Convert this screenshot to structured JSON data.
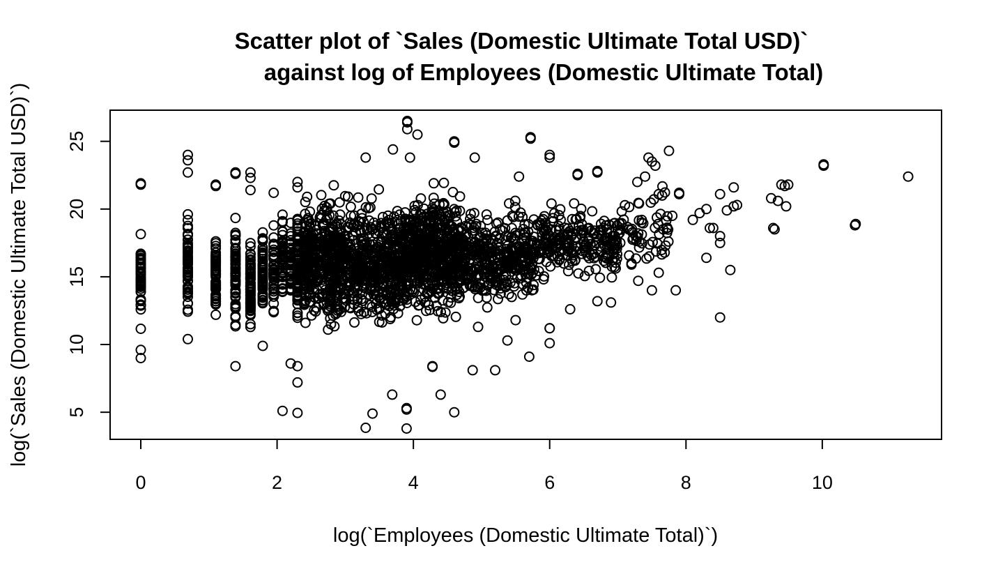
{
  "chart_data": {
    "type": "scatter",
    "title_lines": [
      "Scatter plot of `Sales (Domestic Ultimate Total USD)`",
      "against log of Employees (Domestic Ultimate Total)"
    ],
    "xlabel": "log(`Employees (Domestic Ultimate Total)`)",
    "ylabel": "log(`Sales (Domestic Ultimate Total USD)`)",
    "xlim": [
      -0.45,
      11.75
    ],
    "ylim": [
      3.0,
      27.3
    ],
    "x_ticks": [
      0,
      2,
      4,
      6,
      8,
      10
    ],
    "x_tick_labels": [
      "0",
      "2",
      "4",
      "6",
      "8",
      "10"
    ],
    "y_ticks": [
      5,
      10,
      15,
      20,
      25
    ],
    "y_tick_labels": [
      "5",
      "10",
      "15",
      "20",
      "25"
    ],
    "grid": false,
    "legend": "none",
    "marker": "open-circle",
    "marker_color": "#000000",
    "point_groups": [
      {
        "x": 0.0,
        "y_min": 10.0,
        "y_max": 19.8,
        "n": 45
      },
      {
        "x": 0.69,
        "y_min": 10.3,
        "y_max": 21.5,
        "n": 60
      },
      {
        "x": 1.1,
        "y_min": 10.2,
        "y_max": 19.3,
        "n": 60
      },
      {
        "x": 1.39,
        "y_min": 10.0,
        "y_max": 20.9,
        "n": 70
      },
      {
        "x": 1.61,
        "y_min": 9.7,
        "y_max": 19.3,
        "n": 75
      },
      {
        "x": 1.79,
        "y_min": 11.0,
        "y_max": 19.5,
        "n": 55
      },
      {
        "x": 1.95,
        "y_min": 11.2,
        "y_max": 19.9,
        "n": 45
      },
      {
        "x": 2.08,
        "y_min": 11.0,
        "y_max": 21.6,
        "n": 50
      },
      {
        "x": 2.2,
        "y_min": 11.5,
        "y_max": 20.5,
        "n": 45
      },
      {
        "x": 2.3,
        "y_min": 9.5,
        "y_max": 21.5,
        "n": 90
      },
      {
        "x": 2.4,
        "y_min": 10.0,
        "y_max": 20.5,
        "n": 70
      }
    ],
    "spread": [
      {
        "x_min": 2.4,
        "x_max": 3.9,
        "y_min": 8.8,
        "y_max": 23.5,
        "n": 900
      },
      {
        "x_min": 3.9,
        "x_max": 4.7,
        "y_min": 9.5,
        "y_max": 23.8,
        "n": 550
      },
      {
        "x_min": 4.7,
        "x_max": 5.8,
        "y_min": 11.0,
        "y_max": 22.0,
        "n": 380
      },
      {
        "x_min": 5.8,
        "x_max": 7.0,
        "y_min": 13.0,
        "y_max": 22.0,
        "n": 230
      },
      {
        "x_min": 7.0,
        "x_max": 7.8,
        "y_min": 14.0,
        "y_max": 23.0,
        "n": 60
      }
    ],
    "points": [
      [
        0.0,
        21.9
      ],
      [
        0.0,
        21.8
      ],
      [
        0.0,
        9.0
      ],
      [
        0.0,
        9.6
      ],
      [
        0.69,
        24.0
      ],
      [
        0.69,
        23.6
      ],
      [
        0.69,
        22.7
      ],
      [
        0.69,
        10.4
      ],
      [
        1.1,
        21.8
      ],
      [
        1.1,
        21.7
      ],
      [
        1.39,
        22.7
      ],
      [
        1.39,
        22.6
      ],
      [
        1.39,
        8.4
      ],
      [
        1.61,
        22.7
      ],
      [
        1.61,
        22.3
      ],
      [
        1.61,
        21.4
      ],
      [
        1.79,
        9.9
      ],
      [
        1.95,
        21.2
      ],
      [
        2.08,
        5.1
      ],
      [
        2.3,
        4.95
      ],
      [
        2.3,
        7.2
      ],
      [
        2.2,
        8.6
      ],
      [
        2.3,
        8.4
      ],
      [
        2.3,
        22.0
      ],
      [
        2.3,
        21.6
      ],
      [
        3.3,
        3.85
      ],
      [
        3.4,
        4.9
      ],
      [
        3.69,
        6.3
      ],
      [
        3.9,
        5.3
      ],
      [
        3.9,
        5.2
      ],
      [
        3.9,
        3.8
      ],
      [
        4.4,
        6.3
      ],
      [
        4.6,
        5.0
      ],
      [
        4.28,
        8.4
      ],
      [
        4.28,
        8.35
      ],
      [
        4.87,
        8.1
      ],
      [
        5.2,
        8.1
      ],
      [
        5.7,
        9.1
      ],
      [
        6.0,
        10.1
      ],
      [
        5.38,
        10.3
      ],
      [
        4.95,
        11.3
      ],
      [
        5.5,
        11.8
      ],
      [
        6.0,
        11.2
      ],
      [
        6.0,
        11.2
      ],
      [
        6.3,
        12.6
      ],
      [
        6.7,
        13.2
      ],
      [
        6.9,
        13.1
      ],
      [
        3.91,
        26.5
      ],
      [
        3.91,
        26.4
      ],
      [
        3.91,
        25.9
      ],
      [
        4.06,
        25.5
      ],
      [
        3.7,
        24.4
      ],
      [
        3.3,
        23.8
      ],
      [
        3.95,
        23.8
      ],
      [
        4.6,
        25.0
      ],
      [
        4.6,
        24.9
      ],
      [
        4.9,
        23.8
      ],
      [
        5.72,
        25.3
      ],
      [
        5.72,
        25.2
      ],
      [
        6.0,
        24.0
      ],
      [
        6.0,
        23.8
      ],
      [
        6.41,
        22.6
      ],
      [
        6.41,
        22.5
      ],
      [
        6.7,
        22.7
      ],
      [
        6.7,
        22.8
      ],
      [
        5.55,
        22.4
      ],
      [
        7.2,
        16.0
      ],
      [
        7.2,
        15.9
      ],
      [
        7.3,
        14.7
      ],
      [
        7.5,
        14.0
      ],
      [
        7.3,
        18.2
      ],
      [
        7.35,
        19.0
      ],
      [
        7.4,
        22.4
      ],
      [
        7.45,
        23.8
      ],
      [
        7.5,
        23.5
      ],
      [
        7.55,
        23.2
      ],
      [
        7.6,
        21.1
      ],
      [
        7.65,
        21.0
      ],
      [
        7.7,
        17.3
      ],
      [
        7.75,
        24.3
      ],
      [
        7.8,
        19.5
      ],
      [
        7.85,
        14.0
      ],
      [
        7.6,
        15.3
      ],
      [
        7.9,
        21.2
      ],
      [
        7.9,
        21.1
      ],
      [
        8.1,
        19.2
      ],
      [
        8.2,
        19.7
      ],
      [
        8.3,
        16.4
      ],
      [
        8.3,
        20.0
      ],
      [
        8.35,
        18.6
      ],
      [
        8.4,
        18.6
      ],
      [
        8.5,
        21.1
      ],
      [
        8.5,
        18.0
      ],
      [
        8.5,
        17.5
      ],
      [
        8.5,
        12.0
      ],
      [
        8.6,
        19.9
      ],
      [
        8.65,
        15.5
      ],
      [
        8.7,
        20.2
      ],
      [
        8.7,
        21.6
      ],
      [
        8.75,
        20.3
      ],
      [
        9.25,
        20.8
      ],
      [
        9.28,
        18.6
      ],
      [
        9.3,
        18.5
      ],
      [
        9.35,
        20.6
      ],
      [
        9.4,
        21.8
      ],
      [
        9.45,
        21.7
      ],
      [
        9.47,
        20.2
      ],
      [
        9.5,
        21.8
      ],
      [
        10.02,
        23.3
      ],
      [
        10.02,
        23.2
      ],
      [
        10.49,
        18.9
      ],
      [
        10.48,
        18.8
      ],
      [
        11.26,
        22.4
      ]
    ]
  }
}
